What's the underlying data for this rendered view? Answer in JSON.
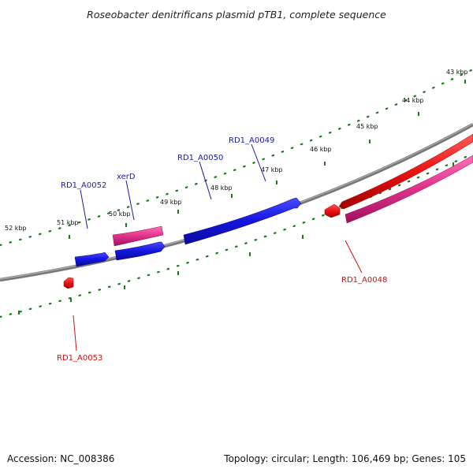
{
  "title": "Roseobacter denitrificans plasmid pTB1, complete sequence",
  "footer": {
    "accession": "Accession: NC_008386",
    "summary": "Topology: circular; Length: 106,469 bp; Genes: 105"
  },
  "colors": {
    "backbone": "#888888",
    "forward_cds": "#1515e0",
    "reverse_cds": "#ee1111",
    "rna_gene": "#e0308a",
    "tick": "#1a7a1a",
    "forward_label": "#1a1aaa",
    "reverse_label": "#cc1111"
  },
  "tick_labels": [
    "43 kbp",
    "44 kbp",
    "45 kbp",
    "46 kbp",
    "47 kbp",
    "48 kbp",
    "49 kbp",
    "50 kbp",
    "51 kbp",
    "52 kbp"
  ],
  "genes": [
    {
      "id": "RD1_A0048",
      "strand": "reverse"
    },
    {
      "id": "RD1_A0049",
      "strand": "forward"
    },
    {
      "id": "RD1_A0050",
      "strand": "forward"
    },
    {
      "id": "xerD",
      "strand": "forward"
    },
    {
      "id": "RD1_A0052",
      "strand": "forward"
    },
    {
      "id": "RD1_A0053",
      "strand": "reverse"
    }
  ]
}
